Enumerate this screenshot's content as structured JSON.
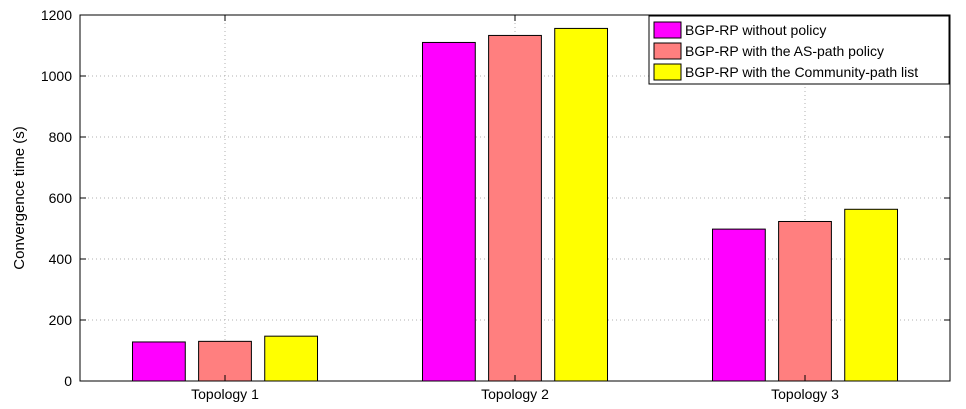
{
  "chart_data": {
    "type": "bar",
    "title": "",
    "xlabel": "",
    "ylabel": "Convergence time (s)",
    "categories": [
      "Topology 1",
      "Topology 2",
      "Topology 3"
    ],
    "series": [
      {
        "name": "BGP-RP without policy",
        "color": "#ff00ff",
        "values": [
          128,
          1110,
          498
        ]
      },
      {
        "name": "BGP-RP with the AS-path policy",
        "color": "#ff7f7f",
        "values": [
          130,
          1133,
          523
        ]
      },
      {
        "name": "BGP-RP with the Community-path list",
        "color": "#ffff00",
        "values": [
          147,
          1156,
          563
        ]
      }
    ],
    "ylim": [
      0,
      1200
    ],
    "yticks": [
      0,
      200,
      400,
      600,
      800,
      1000,
      1200
    ],
    "grid": true,
    "legend_position": "top-right"
  }
}
